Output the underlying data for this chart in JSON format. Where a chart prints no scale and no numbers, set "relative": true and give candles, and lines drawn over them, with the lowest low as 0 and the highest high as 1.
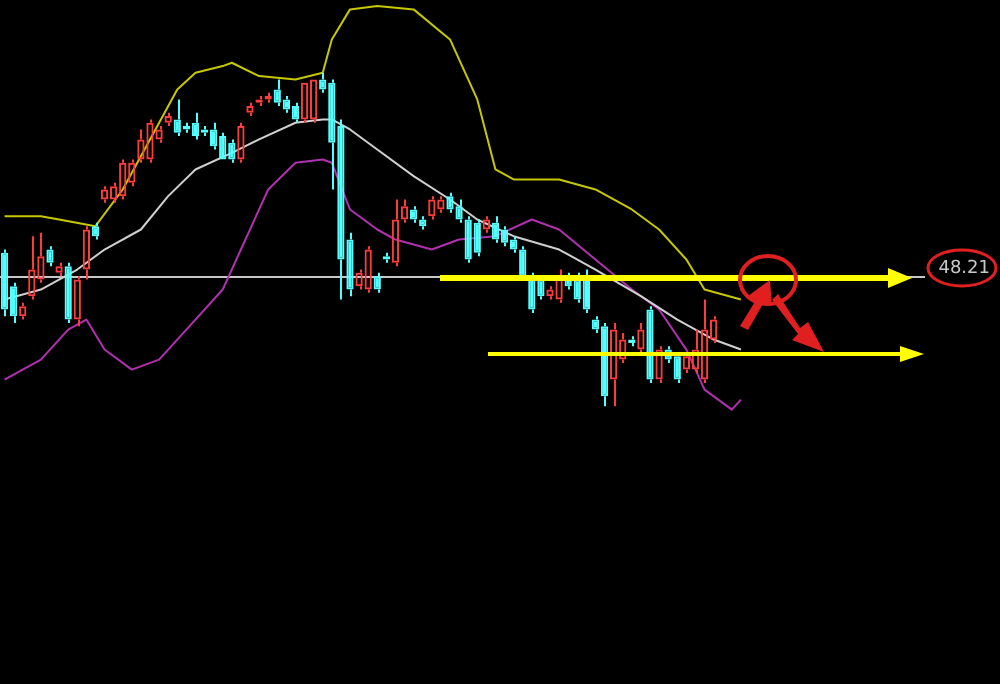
{
  "chart_data": {
    "type": "candlestick",
    "relative": true,
    "tick_labels": false,
    "categories": [
      null,
      null,
      null,
      null,
      null,
      null,
      null,
      null,
      null,
      null,
      null,
      null,
      null,
      null,
      null,
      null,
      null,
      null,
      null,
      null,
      null,
      null,
      null,
      null,
      null,
      null,
      null,
      null,
      null,
      null,
      null,
      null,
      null,
      null,
      null,
      null,
      null,
      null,
      null,
      null,
      null,
      null,
      null,
      null,
      null,
      null,
      null,
      null,
      null,
      null,
      null,
      null,
      null,
      null,
      null,
      null,
      null,
      null,
      null,
      null,
      null,
      null,
      null,
      null,
      null,
      null,
      null,
      null,
      null,
      null,
      null,
      null,
      null,
      null,
      null,
      null,
      null,
      null,
      null,
      null,
      null,
      null,
      null,
      null,
      null,
      null,
      null,
      null,
      null,
      null,
      null,
      null,
      null,
      null,
      null,
      null,
      null,
      null,
      null,
      null,
      null,
      null,
      null,
      null,
      null,
      null,
      null,
      null,
      null,
      null
    ],
    "ohlc": [
      [
        0.46,
        0.47,
        0.27,
        0.29
      ],
      [
        0.36,
        0.37,
        0.25,
        0.27
      ],
      [
        0.27,
        0.31,
        0.26,
        0.3
      ],
      [
        0.33,
        0.51,
        0.32,
        0.41
      ],
      [
        0.38,
        0.52,
        0.37,
        0.45
      ],
      [
        0.47,
        0.48,
        0.42,
        0.43
      ],
      [
        0.4,
        0.43,
        0.39,
        0.42
      ],
      [
        0.42,
        0.43,
        0.25,
        0.26
      ],
      [
        0.26,
        0.39,
        0.24,
        0.38
      ],
      [
        0.41,
        0.54,
        0.38,
        0.53
      ],
      [
        0.54,
        0.55,
        0.5,
        0.51
      ],
      [
        0.62,
        0.66,
        0.61,
        0.65
      ],
      [
        0.62,
        0.67,
        0.61,
        0.66
      ],
      [
        0.63,
        0.74,
        0.62,
        0.73
      ],
      [
        0.67,
        0.74,
        0.66,
        0.73
      ],
      [
        0.74,
        0.83,
        0.73,
        0.8
      ],
      [
        0.74,
        0.86,
        0.73,
        0.85
      ],
      [
        0.8,
        0.84,
        0.79,
        0.83
      ],
      [
        0.85,
        0.88,
        0.84,
        0.87
      ],
      [
        0.86,
        0.92,
        0.81,
        0.82
      ],
      [
        0.84,
        0.85,
        0.82,
        0.83
      ],
      [
        0.85,
        0.88,
        0.8,
        0.81
      ],
      [
        0.83,
        0.84,
        0.81,
        0.82
      ],
      [
        0.83,
        0.85,
        0.77,
        0.78
      ],
      [
        0.81,
        0.82,
        0.74,
        0.74
      ],
      [
        0.79,
        0.8,
        0.73,
        0.74
      ],
      [
        0.74,
        0.85,
        0.73,
        0.84
      ],
      [
        0.88,
        0.91,
        0.87,
        0.9
      ],
      [
        0.91,
        0.93,
        0.9,
        0.92
      ],
      [
        0.92,
        0.94,
        0.91,
        0.93
      ],
      [
        0.95,
        0.98,
        0.9,
        0.91
      ],
      [
        0.92,
        0.93,
        0.88,
        0.89
      ],
      [
        0.9,
        0.91,
        0.85,
        0.86
      ],
      [
        0.86,
        0.97,
        0.85,
        0.97
      ],
      [
        0.86,
        0.98,
        0.85,
        0.98
      ],
      [
        0.98,
        1.0,
        0.94,
        0.95
      ],
      [
        0.97,
        0.98,
        0.65,
        0.79
      ],
      [
        0.84,
        0.86,
        0.32,
        0.44
      ],
      [
        0.5,
        0.52,
        0.33,
        0.35
      ],
      [
        0.36,
        0.41,
        0.35,
        0.4
      ],
      [
        0.35,
        0.48,
        0.34,
        0.47
      ],
      [
        0.39,
        0.4,
        0.34,
        0.35
      ],
      [
        0.45,
        0.46,
        0.43,
        0.44
      ],
      [
        0.43,
        0.62,
        0.42,
        0.56
      ],
      [
        0.56,
        0.62,
        0.55,
        0.6
      ],
      [
        0.59,
        0.6,
        0.55,
        0.56
      ],
      [
        0.56,
        0.57,
        0.53,
        0.54
      ],
      [
        0.57,
        0.63,
        0.56,
        0.62
      ],
      [
        0.59,
        0.63,
        0.58,
        0.62
      ],
      [
        0.63,
        0.64,
        0.58,
        0.59
      ],
      [
        0.6,
        0.62,
        0.55,
        0.56
      ],
      [
        0.56,
        0.57,
        0.43,
        0.44
      ],
      [
        0.55,
        0.56,
        0.45,
        0.46
      ],
      [
        0.53,
        0.57,
        0.52,
        0.56
      ],
      [
        0.55,
        0.57,
        0.49,
        0.5
      ],
      [
        0.53,
        0.54,
        0.48,
        0.49
      ],
      [
        0.5,
        0.51,
        0.46,
        0.47
      ],
      [
        0.47,
        0.48,
        0.38,
        0.39
      ],
      [
        0.39,
        0.4,
        0.28,
        0.29
      ],
      [
        0.38,
        0.39,
        0.32,
        0.33
      ],
      [
        0.33,
        0.36,
        0.32,
        0.35
      ],
      [
        0.32,
        0.41,
        0.31,
        0.39
      ],
      [
        0.39,
        0.4,
        0.35,
        0.36
      ],
      [
        0.38,
        0.4,
        0.31,
        0.32
      ],
      [
        0.39,
        0.41,
        0.28,
        0.29
      ],
      [
        0.26,
        0.27,
        0.22,
        0.23
      ],
      [
        0.24,
        0.25,
        0,
        0.03
      ],
      [
        0.08,
        0.25,
        0,
        0.23
      ],
      [
        0.14,
        0.22,
        0.13,
        0.2
      ],
      [
        0.2,
        0.21,
        0.18,
        0.19
      ],
      [
        0.17,
        0.25,
        0.16,
        0.23
      ],
      [
        0.29,
        0.3,
        0.07,
        0.08
      ],
      [
        0.08,
        0.18,
        0.07,
        0.17
      ],
      [
        0.17,
        0.18,
        0.13,
        0.14
      ],
      [
        0.15,
        0.16,
        0.07,
        0.08
      ],
      [
        0.11,
        0.16,
        0.1,
        0.15
      ],
      [
        0.11,
        0.23,
        0.1,
        0.17
      ],
      [
        0.08,
        0.32,
        0.07,
        0.23
      ],
      [
        0.2,
        0.27,
        0.19,
        0.26
      ],
      null,
      null,
      null,
      null,
      null,
      null,
      null,
      null,
      null,
      null,
      null,
      null,
      null,
      null,
      null,
      null,
      null,
      null,
      null,
      null,
      null,
      null,
      null,
      null,
      null,
      null,
      null,
      null,
      null,
      null,
      null
    ],
    "series": [
      {
        "type": "line",
        "color": "#c8c800",
        "values": [
          0.57,
          null,
          null,
          null,
          0.57,
          null,
          0.56,
          null,
          null,
          null,
          0.54,
          null,
          null,
          0.65,
          null,
          null,
          0.8,
          null,
          null,
          0.95,
          null,
          1.0,
          null,
          null,
          1.02,
          1.03,
          null,
          null,
          0.99,
          null,
          null,
          null,
          0.98,
          null,
          null,
          1.0,
          1.1,
          null,
          1.19,
          null,
          null,
          1.2,
          null,
          null,
          null,
          1.19,
          null,
          null,
          null,
          1.1,
          null,
          null,
          0.92,
          null,
          0.71,
          null,
          0.68,
          null,
          null,
          null,
          null,
          0.68,
          null,
          null,
          null,
          0.65,
          null,
          null,
          null,
          0.59,
          null,
          null,
          0.53,
          null,
          null,
          0.44,
          null,
          0.35,
          null,
          null,
          null,
          0.32,
          null,
          null,
          null,
          null,
          null,
          null,
          null,
          null,
          null,
          null,
          null,
          null,
          null,
          null,
          null,
          null,
          null,
          null,
          null,
          null,
          null,
          null,
          null,
          null,
          null,
          null,
          null,
          null
        ]
      },
      {
        "type": "line",
        "color": "#d0d0d0",
        "values": [
          0.32,
          null,
          null,
          null,
          0.35,
          null,
          null,
          null,
          0.41,
          null,
          null,
          0.47,
          null,
          null,
          null,
          0.53,
          null,
          null,
          0.63,
          null,
          null,
          0.71,
          null,
          null,
          null,
          0.76,
          null,
          null,
          0.8,
          null,
          null,
          null,
          0.85,
          null,
          null,
          0.86,
          0.86,
          null,
          0.83,
          null,
          null,
          0.77,
          null,
          null,
          null,
          0.69,
          null,
          null,
          null,
          0.62,
          null,
          null,
          0.56,
          null,
          null,
          null,
          0.51,
          null,
          null,
          null,
          null,
          0.47,
          null,
          null,
          null,
          0.41,
          null,
          null,
          null,
          null,
          0.33,
          null,
          null,
          null,
          0.26,
          null,
          null,
          null,
          0.2,
          null,
          null,
          0.17,
          null,
          null,
          null,
          null,
          null,
          null,
          null,
          null,
          null,
          null,
          null,
          null,
          null,
          null,
          null,
          null,
          null,
          null,
          null,
          null,
          null,
          null,
          null,
          null,
          null,
          null,
          null,
          null
        ]
      },
      {
        "type": "line",
        "color": "#b030b0",
        "values": [
          0.08,
          null,
          null,
          null,
          0.14,
          null,
          null,
          0.23,
          null,
          0.26,
          null,
          0.17,
          null,
          null,
          0.11,
          null,
          null,
          0.14,
          null,
          null,
          0.23,
          null,
          null,
          null,
          0.35,
          null,
          0.47,
          null,
          null,
          0.65,
          null,
          null,
          0.73,
          null,
          null,
          0.74,
          0.73,
          null,
          0.59,
          null,
          null,
          0.53,
          null,
          0.5,
          null,
          null,
          null,
          0.47,
          null,
          null,
          0.5,
          null,
          null,
          null,
          0.51,
          null,
          null,
          null,
          0.56,
          null,
          null,
          0.53,
          null,
          null,
          null,
          0.44,
          null,
          null,
          null,
          0.35,
          null,
          null,
          0.29,
          null,
          null,
          0.17,
          null,
          0.05,
          null,
          null,
          -0.01,
          0.02,
          null,
          null,
          null,
          null,
          null,
          null,
          null,
          null,
          null,
          null,
          null,
          null,
          null,
          null,
          null,
          null,
          null,
          null,
          null,
          null,
          null,
          null,
          null,
          null,
          null,
          null,
          null,
          null
        ]
      }
    ],
    "ref_lines": [
      {
        "axis": "y",
        "value": 0.39,
        "color": "#c8c8c8"
      }
    ],
    "annotations": [
      "48.21"
    ],
    "marker": "none"
  }
}
